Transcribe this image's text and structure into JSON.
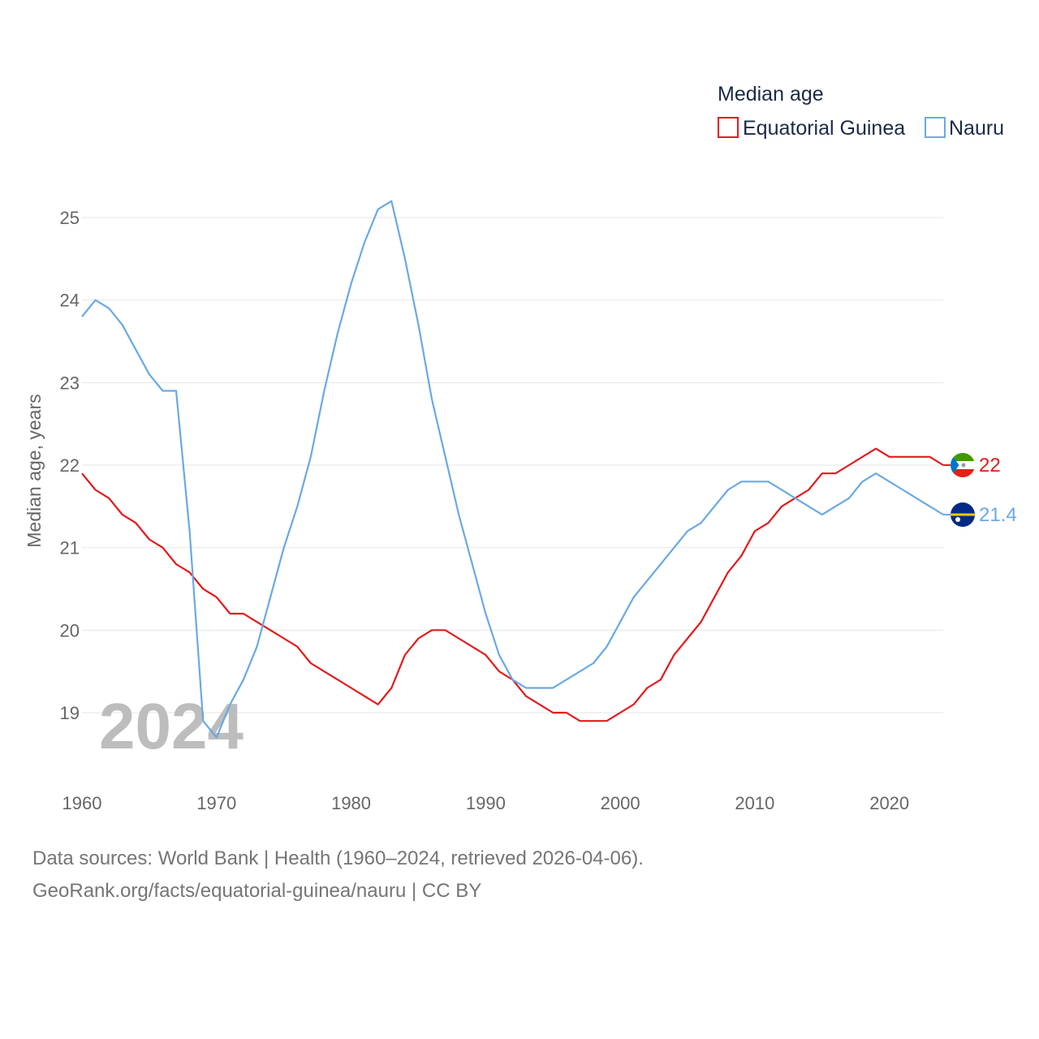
{
  "chart_data": {
    "type": "line",
    "legend_title": "Median age",
    "ylabel": "Median age, years",
    "xlim": [
      1960,
      2024
    ],
    "ylim": [
      18.4,
      25.6
    ],
    "x_ticks": [
      1960,
      1970,
      1980,
      1990,
      2000,
      2010,
      2020
    ],
    "y_ticks": [
      19,
      20,
      21,
      22,
      23,
      24,
      25
    ],
    "year_label": "2024",
    "x": [
      1960,
      1961,
      1962,
      1963,
      1964,
      1965,
      1966,
      1967,
      1968,
      1969,
      1970,
      1971,
      1972,
      1973,
      1974,
      1975,
      1976,
      1977,
      1978,
      1979,
      1980,
      1981,
      1982,
      1983,
      1984,
      1985,
      1986,
      1987,
      1988,
      1989,
      1990,
      1991,
      1992,
      1993,
      1994,
      1995,
      1996,
      1997,
      1998,
      1999,
      2000,
      2001,
      2002,
      2003,
      2004,
      2005,
      2006,
      2007,
      2008,
      2009,
      2010,
      2011,
      2012,
      2013,
      2014,
      2015,
      2016,
      2017,
      2018,
      2019,
      2020,
      2021,
      2022,
      2023,
      2024
    ],
    "series": [
      {
        "name": "Equatorial Guinea",
        "color": "#e41a1c",
        "end_label": "22",
        "values": [
          21.9,
          21.7,
          21.6,
          21.4,
          21.3,
          21.1,
          21.0,
          20.8,
          20.7,
          20.5,
          20.4,
          20.2,
          20.2,
          20.1,
          20.0,
          19.9,
          19.8,
          19.6,
          19.5,
          19.4,
          19.3,
          19.2,
          19.1,
          19.3,
          19.7,
          19.9,
          20.0,
          20.0,
          19.9,
          19.8,
          19.7,
          19.5,
          19.4,
          19.2,
          19.1,
          19.0,
          19.0,
          18.9,
          18.9,
          18.9,
          19.0,
          19.1,
          19.3,
          19.4,
          19.7,
          19.9,
          20.1,
          20.4,
          20.7,
          20.9,
          21.2,
          21.3,
          21.5,
          21.6,
          21.7,
          21.9,
          21.9,
          22.0,
          22.1,
          22.2,
          22.1,
          22.1,
          22.1,
          22.1,
          22.0
        ]
      },
      {
        "name": "Nauru",
        "color": "#6aa9e4",
        "end_label": "21.4",
        "values": [
          23.8,
          24.0,
          23.9,
          23.7,
          23.4,
          23.1,
          22.9,
          22.9,
          21.2,
          18.9,
          18.7,
          19.1,
          19.4,
          19.8,
          20.4,
          21.0,
          21.5,
          22.1,
          22.9,
          23.6,
          24.2,
          24.7,
          25.1,
          25.2,
          24.5,
          23.7,
          22.8,
          22.1,
          21.4,
          20.8,
          20.2,
          19.7,
          19.4,
          19.3,
          19.3,
          19.3,
          19.4,
          19.5,
          19.6,
          19.8,
          20.1,
          20.4,
          20.6,
          20.8,
          21.0,
          21.2,
          21.3,
          21.5,
          21.7,
          21.8,
          21.8,
          21.8,
          21.7,
          21.6,
          21.5,
          21.4,
          21.5,
          21.6,
          21.8,
          21.9,
          21.8,
          21.7,
          21.6,
          21.5,
          21.4
        ]
      }
    ]
  },
  "footer": {
    "line1": "Data sources: World Bank | Health (1960–2024, retrieved 2026-04-06).",
    "line2": "GeoRank.org/facts/equatorial-guinea/nauru | CC BY"
  }
}
